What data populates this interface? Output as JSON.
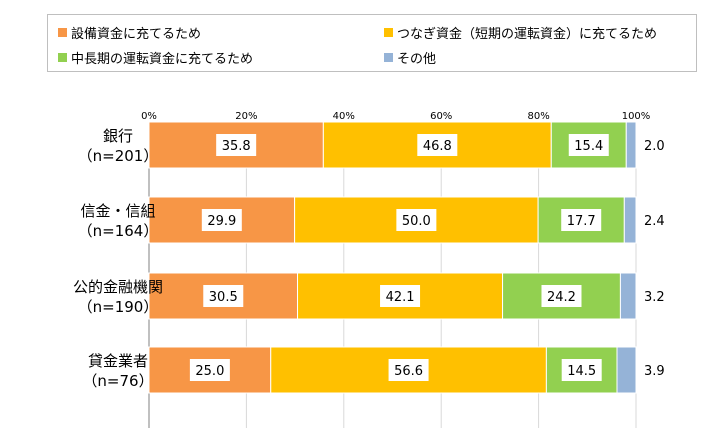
{
  "chart_data": {
    "type": "bar",
    "orientation": "horizontal",
    "stacked": true,
    "legend_position": "top",
    "grid": true,
    "xlim": [
      0,
      100
    ],
    "ticks": [
      "0%",
      "20%",
      "40%",
      "60%",
      "80%",
      "100%"
    ],
    "categories": [
      {
        "name": "銀行",
        "n": "（n=201）"
      },
      {
        "name": "信金・信組",
        "n": "（n=164）"
      },
      {
        "name": "公的金融機関",
        "n": "（n=190）"
      },
      {
        "name": "貸金業者",
        "n": "（n=76）"
      }
    ],
    "series": [
      {
        "name": "設備資金に充てるため",
        "color": "#f79646",
        "values": [
          35.8,
          29.9,
          30.5,
          25.0
        ],
        "labels": [
          "35.8",
          "29.9",
          "30.5",
          "25.0"
        ]
      },
      {
        "name": "つなぎ資金（短期の運転資金）に充てるため",
        "color": "#ffc000",
        "values": [
          46.8,
          50.0,
          42.1,
          56.6
        ],
        "labels": [
          "46.8",
          "50.0",
          "42.1",
          "56.6"
        ]
      },
      {
        "name": "中長期の運転資金に充てるため",
        "color": "#92d050",
        "values": [
          15.4,
          17.7,
          24.2,
          14.5
        ],
        "labels": [
          "15.4",
          "17.7",
          "24.2",
          "14.5"
        ]
      },
      {
        "name": "その他",
        "color": "#95b3d7",
        "values": [
          2.0,
          2.4,
          3.2,
          3.9
        ],
        "labels": [
          "2.0",
          "2.4",
          "3.2",
          "3.9"
        ]
      }
    ]
  }
}
